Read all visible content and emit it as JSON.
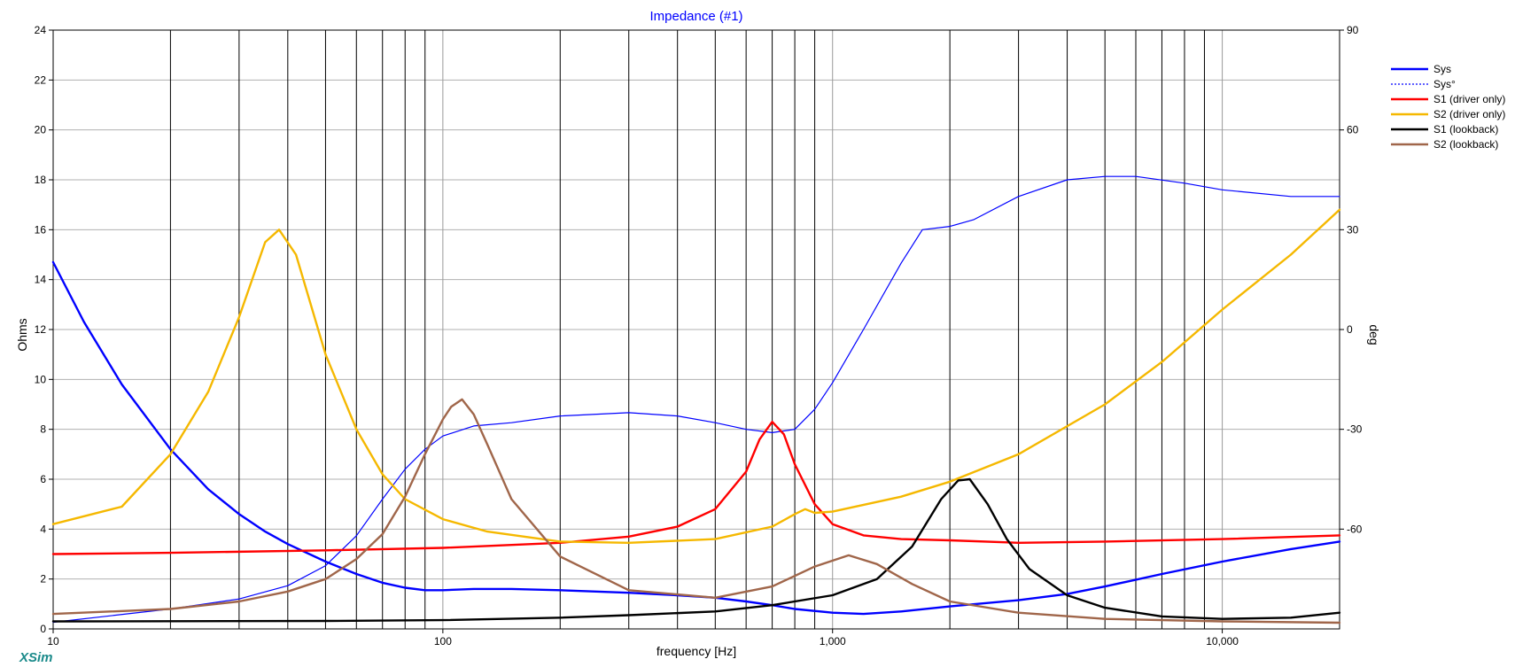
{
  "watermark": "XSim",
  "chart_data": {
    "type": "line",
    "title": "Impedance (#1)",
    "xlabel": "frequency [Hz]",
    "ylabel": "Ohms",
    "y2label": "deg",
    "xscale": "log",
    "xlim": [
      10,
      20000
    ],
    "ylim": [
      0,
      24
    ],
    "y2lim": [
      -90,
      90
    ],
    "grid": true,
    "legend_position": "top-right",
    "x_ticks": [
      10,
      100,
      1000,
      10000
    ],
    "x_tick_labels": [
      "10",
      "100",
      "1,000",
      "10,000"
    ],
    "y_ticks": [
      0,
      2,
      4,
      6,
      8,
      10,
      12,
      14,
      16,
      18,
      20,
      22,
      24
    ],
    "y_tick_labels": [
      "0",
      "2",
      "4",
      "6",
      "8",
      "10",
      "12",
      "14",
      "16",
      "18",
      "20",
      "22",
      "24"
    ],
    "y2_ticks": [
      -60,
      -30,
      0,
      30,
      60,
      90
    ],
    "y2_tick_labels": [
      "-60",
      "-30",
      "0",
      "30",
      "60",
      "90"
    ],
    "series": [
      {
        "name": "Sys",
        "axis": "left",
        "color": "#0000ff",
        "style": "solid-thick",
        "x": [
          10,
          12,
          15,
          20,
          25,
          30,
          35,
          40,
          50,
          60,
          70,
          80,
          90,
          100,
          120,
          150,
          200,
          300,
          400,
          500,
          600,
          700,
          800,
          1000,
          1200,
          1500,
          2000,
          3000,
          4000,
          5000,
          7000,
          10000,
          15000,
          20000
        ],
        "y": [
          14.7,
          12.3,
          9.8,
          7.2,
          5.6,
          4.6,
          3.9,
          3.4,
          2.7,
          2.2,
          1.85,
          1.65,
          1.55,
          1.55,
          1.6,
          1.6,
          1.55,
          1.45,
          1.35,
          1.25,
          1.1,
          0.95,
          0.8,
          0.65,
          0.6,
          0.7,
          0.9,
          1.15,
          1.4,
          1.7,
          2.2,
          2.7,
          3.2,
          3.5
        ]
      },
      {
        "name": "Sys°",
        "axis": "right",
        "color": "#0000ff",
        "style": "solid-thin",
        "x": [
          10,
          20,
          30,
          40,
          50,
          60,
          70,
          80,
          90,
          100,
          120,
          150,
          200,
          300,
          400,
          500,
          600,
          700,
          800,
          900,
          1000,
          1200,
          1500,
          1700,
          2000,
          2300,
          3000,
          4000,
          5000,
          6000,
          8000,
          10000,
          15000,
          20000
        ],
        "y": [
          -88,
          -84,
          -81,
          -77,
          -71,
          -62,
          -51,
          -42,
          -36,
          -32,
          -29,
          -28,
          -26,
          -25,
          -26,
          -28,
          -30,
          -31,
          -30,
          -24,
          -16,
          0,
          20,
          30,
          31,
          33,
          40,
          45,
          46,
          46,
          44,
          42,
          40,
          40
        ]
      },
      {
        "name": "S1 (driver only)",
        "axis": "left",
        "color": "#ff0000",
        "style": "solid-thick",
        "x": [
          10,
          20,
          50,
          100,
          200,
          300,
          400,
          500,
          600,
          650,
          700,
          750,
          800,
          900,
          1000,
          1200,
          1500,
          2000,
          3000,
          5000,
          10000,
          20000
        ],
        "y": [
          3.0,
          3.05,
          3.15,
          3.25,
          3.45,
          3.7,
          4.1,
          4.8,
          6.3,
          7.6,
          8.3,
          7.8,
          6.6,
          5.0,
          4.2,
          3.75,
          3.6,
          3.55,
          3.45,
          3.5,
          3.6,
          3.75
        ]
      },
      {
        "name": "S2 (driver only)",
        "axis": "left",
        "color": "#f5b800",
        "style": "solid-thick",
        "x": [
          10,
          15,
          20,
          25,
          30,
          35,
          38,
          42,
          50,
          60,
          70,
          80,
          100,
          130,
          200,
          300,
          500,
          700,
          800,
          850,
          900,
          1000,
          1500,
          2000,
          3000,
          5000,
          7000,
          10000,
          15000,
          20000
        ],
        "y": [
          4.2,
          4.9,
          7.0,
          9.5,
          12.5,
          15.5,
          16.0,
          15.0,
          11.0,
          8.0,
          6.2,
          5.2,
          4.4,
          3.9,
          3.5,
          3.45,
          3.6,
          4.1,
          4.6,
          4.8,
          4.65,
          4.7,
          5.3,
          5.9,
          7.0,
          9.0,
          10.7,
          12.8,
          15.0,
          16.8
        ]
      },
      {
        "name": "S1 (lookback)",
        "axis": "left",
        "color": "#000000",
        "style": "solid-thick",
        "x": [
          10,
          50,
          100,
          200,
          300,
          500,
          700,
          1000,
          1300,
          1600,
          1900,
          2100,
          2250,
          2500,
          2800,
          3200,
          4000,
          5000,
          7000,
          10000,
          15000,
          20000
        ],
        "y": [
          0.3,
          0.32,
          0.35,
          0.45,
          0.55,
          0.7,
          0.95,
          1.35,
          2.0,
          3.3,
          5.2,
          5.95,
          6.0,
          5.0,
          3.6,
          2.4,
          1.35,
          0.85,
          0.5,
          0.4,
          0.45,
          0.65
        ]
      },
      {
        "name": "S2 (lookback)",
        "axis": "left",
        "color": "#a0664a",
        "style": "solid-thick",
        "x": [
          10,
          20,
          30,
          40,
          50,
          60,
          70,
          80,
          90,
          100,
          105,
          112,
          120,
          130,
          150,
          200,
          300,
          500,
          700,
          900,
          1100,
          1300,
          1600,
          2000,
          3000,
          5000,
          10000,
          20000
        ],
        "y": [
          0.6,
          0.8,
          1.1,
          1.5,
          2.0,
          2.8,
          3.8,
          5.3,
          7.0,
          8.4,
          8.9,
          9.2,
          8.6,
          7.4,
          5.2,
          2.9,
          1.55,
          1.25,
          1.7,
          2.5,
          2.95,
          2.6,
          1.8,
          1.1,
          0.65,
          0.4,
          0.3,
          0.25
        ]
      }
    ]
  }
}
